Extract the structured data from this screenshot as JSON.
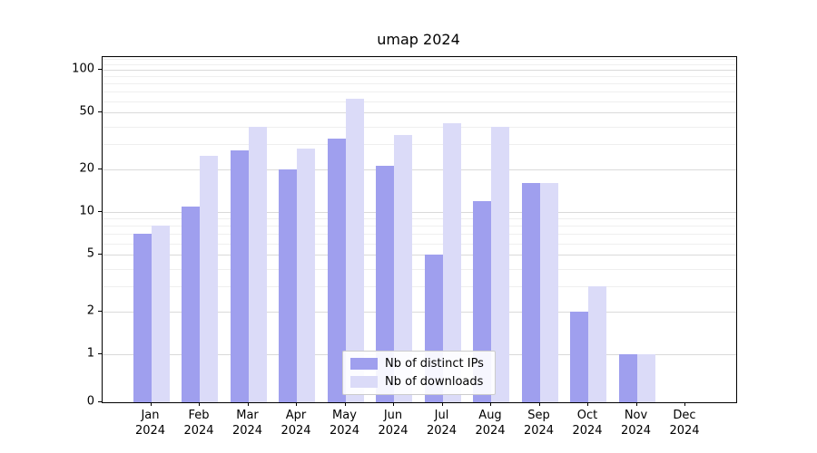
{
  "title": "umap 2024",
  "chart_data": {
    "type": "bar",
    "title": "umap 2024",
    "yscale": "symlog",
    "grid": true,
    "legend_position": "lower center",
    "xlabel": "",
    "ylabel": "",
    "categories": [
      "Jan 2024",
      "Feb 2024",
      "Mar 2024",
      "Apr 2024",
      "May 2024",
      "Jun 2024",
      "Jul 2024",
      "Aug 2024",
      "Sep 2024",
      "Oct 2024",
      "Nov 2024",
      "Dec 2024"
    ],
    "series": [
      {
        "name": "Nb of distinct IPs",
        "color": "#9f9fee",
        "values": [
          7,
          11,
          27,
          20,
          33,
          21,
          5,
          12,
          16,
          2,
          1,
          0
        ]
      },
      {
        "name": "Nb of downloads",
        "color": "#dbdbf8",
        "values": [
          8,
          25,
          40,
          28,
          63,
          35,
          42,
          40,
          16,
          3,
          1,
          0
        ]
      }
    ],
    "yticks": [
      0,
      1,
      2,
      5,
      10,
      20,
      50,
      100
    ],
    "ylim": [
      0,
      123
    ]
  }
}
